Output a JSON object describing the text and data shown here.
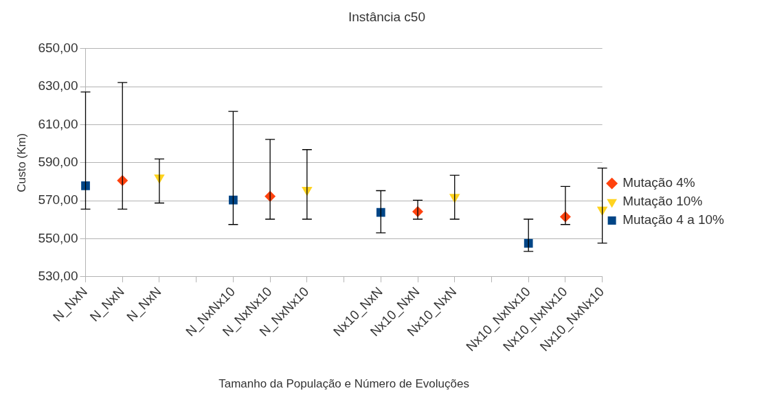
{
  "chart_data": {
    "type": "scatter",
    "title": "Instância c50",
    "xlabel": "Tamanho da População e Número de Evoluções",
    "ylabel": "Custo (Km)",
    "categories": [
      "N_NxN",
      "N_NxN",
      "N_NxN",
      null,
      "N_NxNx10",
      "N_NxNx10",
      "N_NxNx10",
      null,
      "Nx10_NxN",
      "Nx10_NxN",
      "Nx10_NxN",
      null,
      "Nx10_NxNx10",
      "Nx10_NxNx10",
      "Nx10_NxNx10"
    ],
    "series": [
      {
        "name": "Mutação 4%",
        "color": "#ff420e",
        "marker": "diamond",
        "values": [
          null,
          580.6,
          null,
          null,
          null,
          572.3,
          null,
          null,
          null,
          564.3,
          null,
          null,
          null,
          561.6,
          null
        ],
        "errors": [
          null,
          [
            565.6,
            632.2
          ],
          null,
          null,
          null,
          [
            560.3,
            602.3
          ],
          null,
          null,
          null,
          [
            560.3,
            570.3
          ],
          null,
          null,
          null,
          [
            557.5,
            577.5
          ],
          null
        ]
      },
      {
        "name": "Mutação 10%",
        "color": "#ffd320",
        "marker": "triangle",
        "values": [
          null,
          null,
          582.2,
          null,
          null,
          null,
          575.7,
          null,
          null,
          null,
          572,
          null,
          null,
          null,
          565.3
        ],
        "errors": [
          null,
          null,
          [
            568.8,
            592
          ],
          null,
          null,
          null,
          [
            560.3,
            596.9
          ],
          null,
          null,
          null,
          [
            560.3,
            583.4
          ],
          null,
          null,
          null,
          [
            547.7,
            587.2
          ]
        ]
      },
      {
        "name": "Mutação 4 a 10%",
        "color": "#004586",
        "marker": "square",
        "values": [
          577.9,
          null,
          null,
          null,
          570.4,
          null,
          null,
          null,
          563.9,
          null,
          null,
          null,
          547.6,
          null,
          null
        ],
        "errors": [
          [
            565.6,
            627.2
          ],
          null,
          null,
          null,
          [
            557.5,
            617
          ],
          null,
          null,
          null,
          [
            553.1,
            575.3
          ],
          null,
          null,
          null,
          [
            543.4,
            560.3
          ],
          null,
          null
        ]
      }
    ],
    "ylim": [
      530,
      650
    ],
    "yticks": [
      {
        "value": 530,
        "label": "530,00"
      },
      {
        "value": 550,
        "label": "550,00"
      },
      {
        "value": 570,
        "label": "570,00"
      },
      {
        "value": 590,
        "label": "590,00"
      },
      {
        "value": 610,
        "label": "610,00"
      },
      {
        "value": 630,
        "label": "630,00"
      },
      {
        "value": 650,
        "label": "650,00"
      }
    ],
    "grid": "y",
    "legend": "right"
  }
}
